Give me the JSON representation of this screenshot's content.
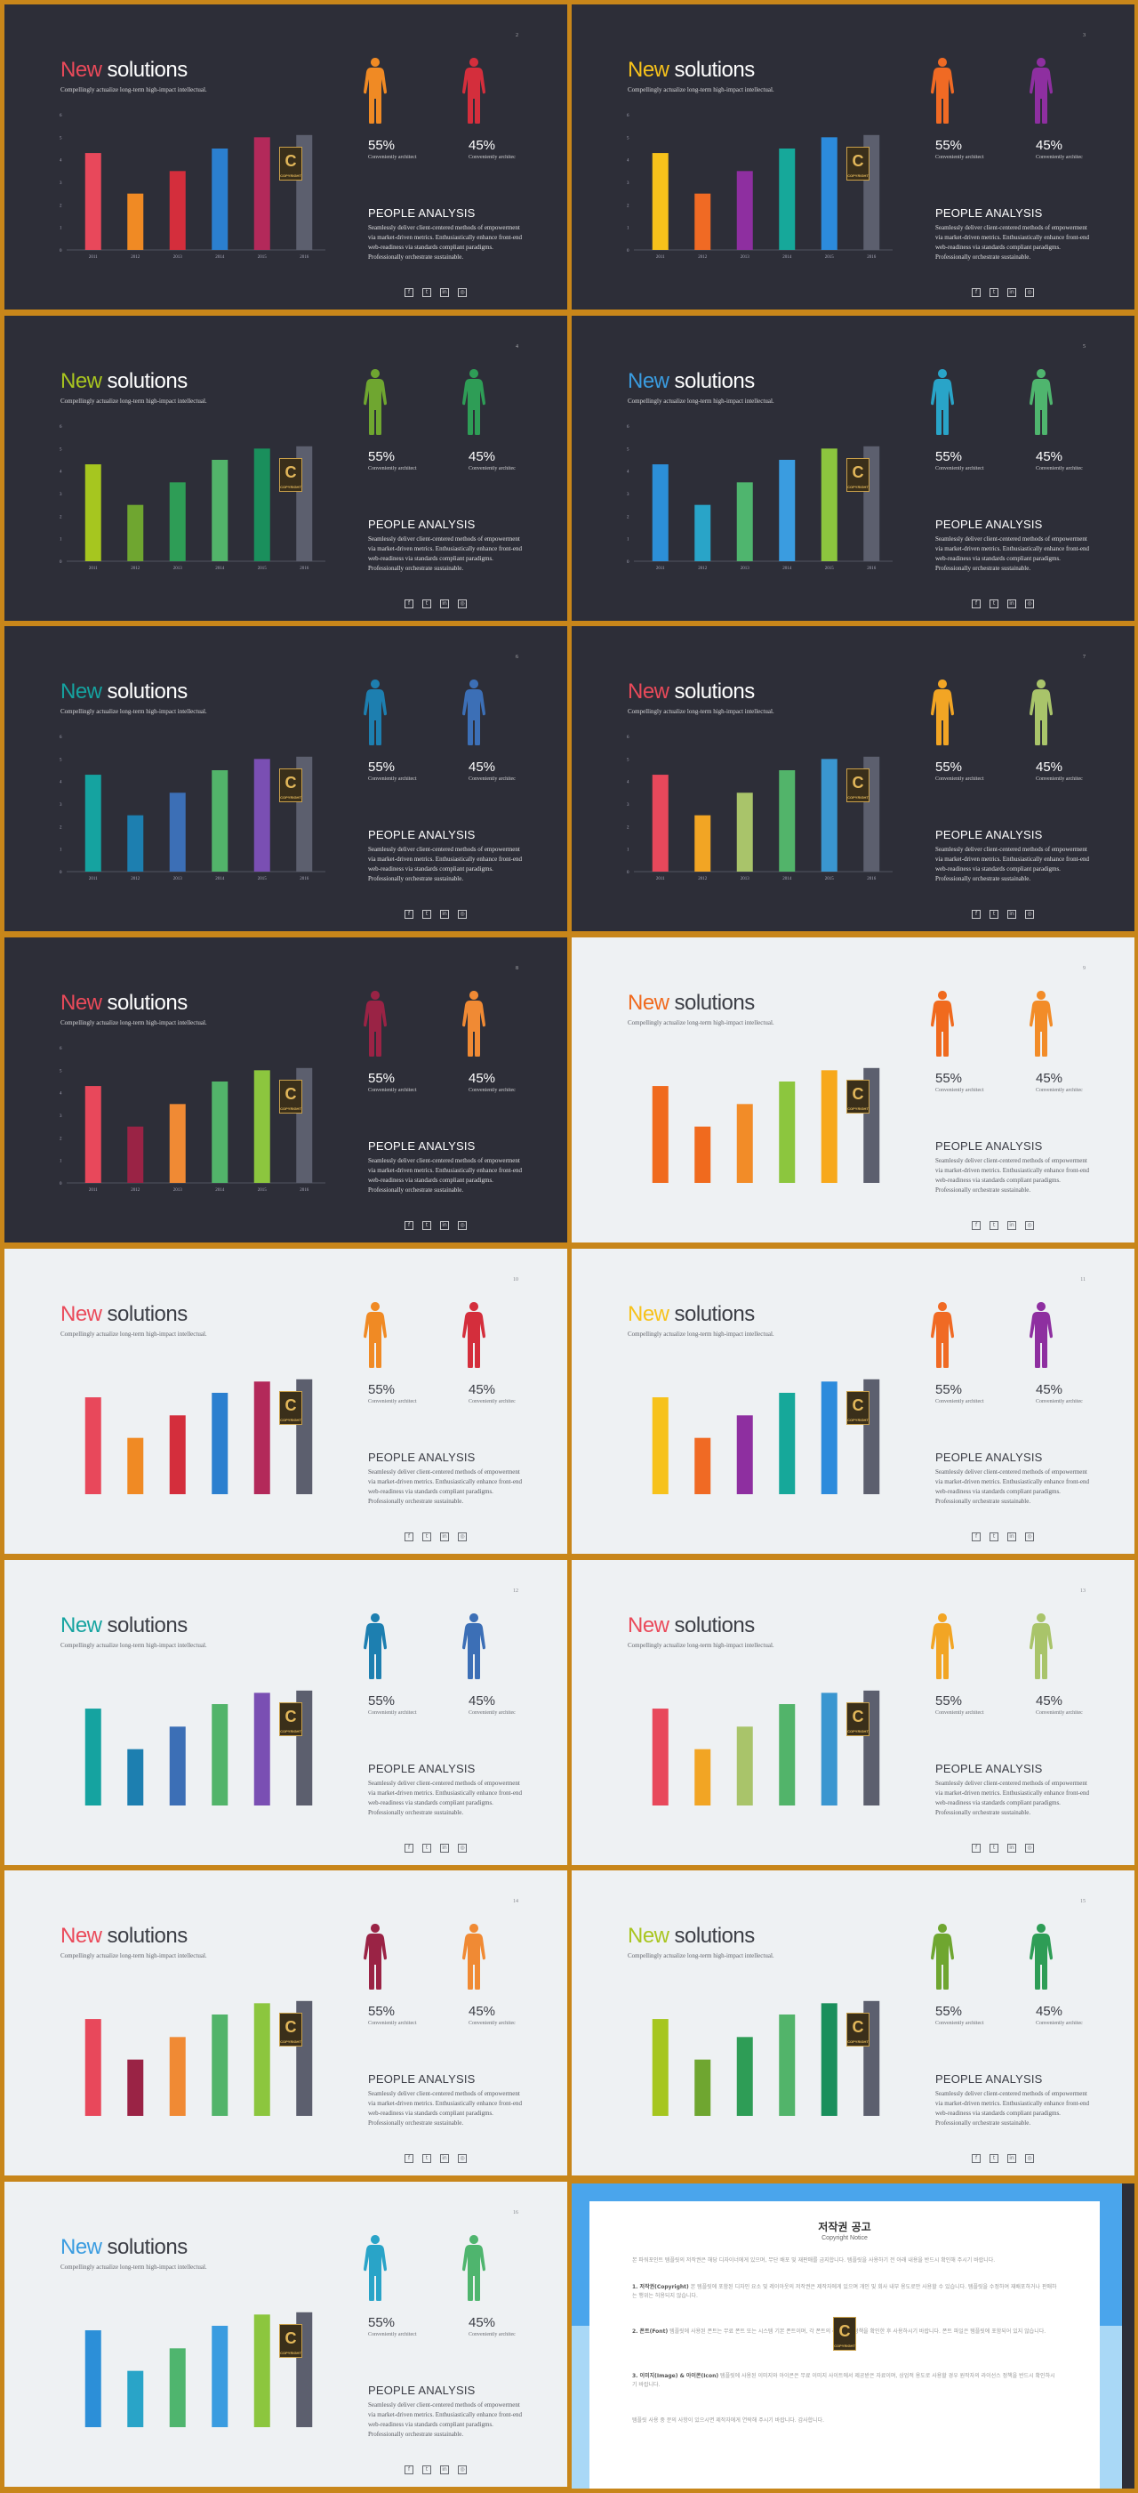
{
  "deck": {
    "title_accent": "New",
    "title_rest": "solutions",
    "subtitle": "Compellingly actualize long-term high-impact intellectual.",
    "people_heading": "PEOPLE ANALYSIS",
    "people_body": "Seamlessly deliver client-centered methods of empowerment via market-driven metrics. Enthusiastically enhance front-end web-readiness via standards compliant paradigms. Professionally orchestrate sustainable.",
    "stat_left_value": "55%",
    "stat_left_label": "Conveniently architect",
    "stat_right_value": "45%",
    "stat_right_label": "Conveniently architec",
    "badge_letter": "C",
    "badge_text": "COPYRIGHT",
    "social_icons": [
      "facebook-icon",
      "twitter-icon",
      "linkedin-icon",
      "instagram-icon"
    ],
    "social_glyphs": [
      "f",
      "t",
      "in",
      "◎"
    ]
  },
  "chart_data": {
    "type": "bar",
    "categories": [
      "2011",
      "2012",
      "2013",
      "2014",
      "2015",
      "2016"
    ],
    "values": [
      4.3,
      2.5,
      3.5,
      4.5,
      5,
      5.1
    ],
    "yticks": [
      "0",
      "1",
      "2",
      "3",
      "4",
      "5",
      "6"
    ],
    "ylim": [
      0,
      6
    ]
  },
  "slides": [
    {
      "page": "2",
      "theme": "dark",
      "accent": "#ea4a5a",
      "bars": [
        "#e8485b",
        "#f08a24",
        "#d42e3c",
        "#2b7fcf",
        "#b3295a",
        "#5c5f6e"
      ],
      "fig_left": "#f08a24",
      "fig_right": "#d42e3c"
    },
    {
      "page": "3",
      "theme": "dark",
      "accent": "#f7c21b",
      "bars": [
        "#f7c21b",
        "#f06a24",
        "#8e2fa0",
        "#16a89a",
        "#2c8bdc",
        "#5c5f6e"
      ],
      "fig_left": "#f06a24",
      "fig_right": "#8e2fa0"
    },
    {
      "page": "4",
      "theme": "dark",
      "accent": "#a9c520",
      "bars": [
        "#a6c61f",
        "#6fa630",
        "#2e9d56",
        "#52b46a",
        "#1a8f5c",
        "#5c5f6e"
      ],
      "fig_left": "#6fa630",
      "fig_right": "#2e9d56"
    },
    {
      "page": "5",
      "theme": "dark",
      "accent": "#3a9ce0",
      "bars": [
        "#2c8fd8",
        "#29a4c8",
        "#4fb56e",
        "#3a9ce0",
        "#8cc63e",
        "#5c5f6e"
      ],
      "fig_left": "#29a4c8",
      "fig_right": "#4fb56e"
    },
    {
      "page": "6",
      "theme": "dark",
      "accent": "#15a3a0",
      "bars": [
        "#15a3a0",
        "#1d7fb0",
        "#3c6fb6",
        "#52b46a",
        "#7a4fb3",
        "#5c5f6e"
      ],
      "fig_left": "#1d7fb0",
      "fig_right": "#3c6fb6"
    },
    {
      "page": "7",
      "theme": "dark",
      "accent": "#ea4a5a",
      "bars": [
        "#e8485b",
        "#f2a524",
        "#a9c46a",
        "#52b46a",
        "#3a96d0",
        "#5c5f6e"
      ],
      "fig_left": "#f2a524",
      "fig_right": "#a9c46a"
    },
    {
      "page": "8",
      "theme": "dark",
      "accent": "#ea4a5a",
      "bars": [
        "#e8485b",
        "#9a2345",
        "#f08a34",
        "#52b46a",
        "#8cc63e",
        "#5c5f6e"
      ],
      "fig_left": "#9a2345",
      "fig_right": "#f08a34"
    },
    {
      "page": "9",
      "theme": "light",
      "accent": "#f06a1e",
      "bars": [
        "#f06a1e",
        "#f06a1e",
        "#f28c28",
        "#8cc63e",
        "#f7a81b",
        "#5c5f6e"
      ],
      "fig_left": "#f06a1e",
      "fig_right": "#f28c28"
    },
    {
      "page": "10",
      "theme": "light",
      "accent": "#ea4a5a",
      "bars": [
        "#e8485b",
        "#f08a24",
        "#d42e3c",
        "#2b7fcf",
        "#b3295a",
        "#5c5f6e"
      ],
      "fig_left": "#f08a24",
      "fig_right": "#d42e3c"
    },
    {
      "page": "11",
      "theme": "light",
      "accent": "#f7c21b",
      "bars": [
        "#f7c21b",
        "#f06a24",
        "#8e2fa0",
        "#16a89a",
        "#2c8bdc",
        "#5c5f6e"
      ],
      "fig_left": "#f06a24",
      "fig_right": "#8e2fa0"
    },
    {
      "page": "12",
      "theme": "light",
      "accent": "#15a3a0",
      "bars": [
        "#15a3a0",
        "#1d7fb0",
        "#3c6fb6",
        "#52b46a",
        "#7a4fb3",
        "#5c5f6e"
      ],
      "fig_left": "#1d7fb0",
      "fig_right": "#3c6fb6"
    },
    {
      "page": "13",
      "theme": "light",
      "accent": "#ea4a5a",
      "bars": [
        "#e8485b",
        "#f2a524",
        "#a9c46a",
        "#52b46a",
        "#3a96d0",
        "#5c5f6e"
      ],
      "fig_left": "#f2a524",
      "fig_right": "#a9c46a"
    },
    {
      "page": "14",
      "theme": "light",
      "accent": "#ea4a5a",
      "bars": [
        "#e8485b",
        "#9a2345",
        "#f08a34",
        "#52b46a",
        "#8cc63e",
        "#5c5f6e"
      ],
      "fig_left": "#9a2345",
      "fig_right": "#f08a34"
    },
    {
      "page": "15",
      "theme": "light",
      "accent": "#a9c520",
      "bars": [
        "#a6c61f",
        "#6fa630",
        "#2e9d56",
        "#52b46a",
        "#1a8f5c",
        "#5c5f6e"
      ],
      "fig_left": "#6fa630",
      "fig_right": "#2e9d56"
    },
    {
      "page": "16",
      "theme": "light",
      "accent": "#3a9ce0",
      "bars": [
        "#2c8fd8",
        "#29a4c8",
        "#4fb56e",
        "#3a9ce0",
        "#8cc63e",
        "#5c5f6e"
      ],
      "fig_left": "#29a4c8",
      "fig_right": "#4fb56e"
    }
  ],
  "notice": {
    "title": "저작권 공고",
    "subtitle": "Copyright Notice",
    "p1": "본 파워포인트 템플릿의 저작권은 해당 디자이너에게 있으며, 무단 배포 및 재판매를 금지합니다. 템플릿을 사용하기 전 아래 내용을 반드시 확인해 주시기 바랍니다.",
    "p2_head": "1. 저작권(Copyright)",
    "p2": "본 템플릿에 포함된 디자인 요소 및 레이아웃의 저작권은 제작자에게 있으며 개인 및 회사 내부 용도로만 사용할 수 있습니다. 템플릿을 수정하여 재배포하거나 판매하는 행위는 허용되지 않습니다.",
    "p3_head": "2. 폰트(Font)",
    "p3": "템플릿에 사용된 폰트는 무료 폰트 또는 시스템 기본 폰트이며, 각 폰트의 라이선스 정책을 확인한 후 사용하시기 바랍니다. 폰트 파일은 템플릿에 포함되어 있지 않습니다.",
    "p4_head": "3. 이미지(Image) & 아이콘(Icon)",
    "p4": "템플릿에 사용된 이미지와 아이콘은 무료 이미지 사이트에서 제공받은 자료이며, 상업적 용도로 사용할 경우 원작자의 라이선스 정책을 반드시 확인하시기 바랍니다.",
    "p5": "템플릿 사용 중 문의 사항이 있으시면 제작자에게 연락해 주시기 바랍니다. 감사합니다."
  }
}
